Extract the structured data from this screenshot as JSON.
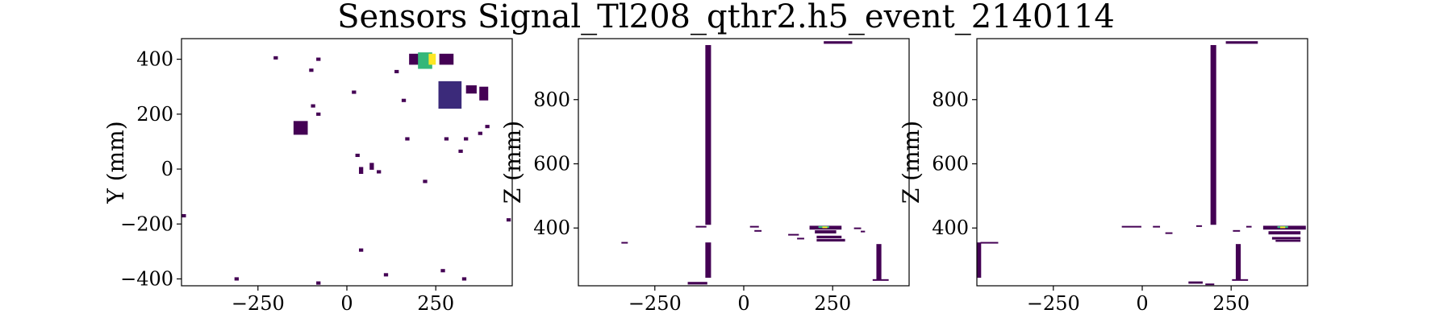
{
  "figure": {
    "title": "Sensors Signal_Tl208_qthr2.h5_event_2140114"
  },
  "colors": {
    "low": "#440154",
    "mid": "#31688e",
    "midhigh": "#35b779",
    "high": "#fde725"
  },
  "chart_data": [
    {
      "type": "heatmap",
      "xlabel": "",
      "ylabel": "Y (mm)",
      "xlim": [
        -465,
        465
      ],
      "ylim": [
        -425,
        475
      ],
      "xticks": [
        -250,
        0,
        250
      ],
      "yticks": [
        -400,
        -200,
        0,
        200,
        400
      ],
      "xtick_labels": [
        "−250",
        "0",
        "250"
      ],
      "ytick_labels": [
        "−400",
        "−200",
        "0",
        "200",
        "400"
      ],
      "cells": [
        {
          "x": -460,
          "y": -170,
          "w": 15,
          "h": 12,
          "v": 0.02
        },
        {
          "x": -200,
          "y": 405,
          "w": 12,
          "h": 12,
          "v": 0.02
        },
        {
          "x": -100,
          "y": 360,
          "w": 12,
          "h": 12,
          "v": 0.02
        },
        {
          "x": -80,
          "y": 400,
          "w": 12,
          "h": 12,
          "v": 0.02
        },
        {
          "x": -95,
          "y": 230,
          "w": 12,
          "h": 12,
          "v": 0.02
        },
        {
          "x": -80,
          "y": 200,
          "w": 12,
          "h": 12,
          "v": 0.02
        },
        {
          "x": -130,
          "y": 150,
          "w": 40,
          "h": 50,
          "v": 0.1
        },
        {
          "x": 20,
          "y": 280,
          "w": 12,
          "h": 12,
          "v": 0.02
        },
        {
          "x": 30,
          "y": 50,
          "w": 12,
          "h": 12,
          "v": 0.02
        },
        {
          "x": 40,
          "y": -5,
          "w": 12,
          "h": 25,
          "v": 0.02
        },
        {
          "x": 70,
          "y": 10,
          "w": 12,
          "h": 25,
          "v": 0.02
        },
        {
          "x": 90,
          "y": -10,
          "w": 12,
          "h": 12,
          "v": 0.02
        },
        {
          "x": 190,
          "y": 400,
          "w": 30,
          "h": 40,
          "v": 0.05
        },
        {
          "x": 140,
          "y": 355,
          "w": 12,
          "h": 12,
          "v": 0.02
        },
        {
          "x": 160,
          "y": 250,
          "w": 12,
          "h": 12,
          "v": 0.02
        },
        {
          "x": 220,
          "y": 395,
          "w": 40,
          "h": 60,
          "v": 0.8
        },
        {
          "x": 240,
          "y": 400,
          "w": 20,
          "h": 40,
          "v": 1.0
        },
        {
          "x": 280,
          "y": 400,
          "w": 40,
          "h": 40,
          "v": 0.05
        },
        {
          "x": 290,
          "y": 270,
          "w": 65,
          "h": 100,
          "v": 0.18
        },
        {
          "x": 350,
          "y": 290,
          "w": 30,
          "h": 30,
          "v": 0.03
        },
        {
          "x": 385,
          "y": 275,
          "w": 25,
          "h": 50,
          "v": 0.03
        },
        {
          "x": 170,
          "y": 110,
          "w": 12,
          "h": 12,
          "v": 0.02
        },
        {
          "x": 280,
          "y": 110,
          "w": 12,
          "h": 12,
          "v": 0.02
        },
        {
          "x": 335,
          "y": 110,
          "w": 12,
          "h": 12,
          "v": 0.02
        },
        {
          "x": 375,
          "y": 130,
          "w": 12,
          "h": 12,
          "v": 0.02
        },
        {
          "x": 395,
          "y": 155,
          "w": 12,
          "h": 12,
          "v": 0.02
        },
        {
          "x": 320,
          "y": 65,
          "w": 12,
          "h": 12,
          "v": 0.02
        },
        {
          "x": 220,
          "y": -45,
          "w": 12,
          "h": 12,
          "v": 0.02
        },
        {
          "x": 455,
          "y": -185,
          "w": 12,
          "h": 12,
          "v": 0.02
        },
        {
          "x": 40,
          "y": -295,
          "w": 12,
          "h": 12,
          "v": 0.02
        },
        {
          "x": 110,
          "y": -385,
          "w": 12,
          "h": 12,
          "v": 0.02
        },
        {
          "x": 270,
          "y": -370,
          "w": 12,
          "h": 12,
          "v": 0.02
        },
        {
          "x": 330,
          "y": -400,
          "w": 12,
          "h": 12,
          "v": 0.02
        },
        {
          "x": -310,
          "y": -400,
          "w": 12,
          "h": 12,
          "v": 0.02
        },
        {
          "x": -80,
          "y": -415,
          "w": 12,
          "h": 12,
          "v": 0.02
        }
      ]
    },
    {
      "type": "heatmap",
      "xlabel": "",
      "ylabel": "Z (mm)",
      "xlim": [
        -465,
        465
      ],
      "ylim": [
        220,
        990
      ],
      "xticks": [
        -250,
        0,
        250
      ],
      "yticks": [
        400,
        600,
        800
      ],
      "xtick_labels": [
        "−250",
        "0",
        "250"
      ],
      "ytick_labels": [
        "400",
        "600",
        "800"
      ],
      "cells": [
        {
          "x": -100,
          "y": 690,
          "w": 16,
          "h": 560,
          "v": 0.05
        },
        {
          "x": -100,
          "y": 300,
          "w": 16,
          "h": 110,
          "v": 0.05
        },
        {
          "x": -120,
          "y": 405,
          "w": 30,
          "h": 3,
          "v": 0.02
        },
        {
          "x": -130,
          "y": 228,
          "w": 55,
          "h": 8,
          "v": 0.05
        },
        {
          "x": 265,
          "y": 978,
          "w": 80,
          "h": 8,
          "v": 0.05
        },
        {
          "x": 230,
          "y": 401,
          "w": 90,
          "h": 12,
          "v": 0.1
        },
        {
          "x": 225,
          "y": 403,
          "w": 30,
          "h": 6,
          "v": 0.8
        },
        {
          "x": 228,
          "y": 402,
          "w": 14,
          "h": 5,
          "v": 1.0
        },
        {
          "x": 230,
          "y": 388,
          "w": 60,
          "h": 10,
          "v": 0.05
        },
        {
          "x": 240,
          "y": 372,
          "w": 70,
          "h": 8,
          "v": 0.05
        },
        {
          "x": 245,
          "y": 362,
          "w": 80,
          "h": 8,
          "v": 0.05
        },
        {
          "x": 140,
          "y": 380,
          "w": 30,
          "h": 3,
          "v": 0.02
        },
        {
          "x": 160,
          "y": 368,
          "w": 20,
          "h": 3,
          "v": 0.02
        },
        {
          "x": 320,
          "y": 400,
          "w": 20,
          "h": 3,
          "v": 0.02
        },
        {
          "x": 335,
          "y": 390,
          "w": 12,
          "h": 3,
          "v": 0.02
        },
        {
          "x": 30,
          "y": 405,
          "w": 25,
          "h": 3,
          "v": 0.02
        },
        {
          "x": 40,
          "y": 392,
          "w": 20,
          "h": 3,
          "v": 0.02
        },
        {
          "x": -335,
          "y": 355,
          "w": 18,
          "h": 3,
          "v": 0.02
        },
        {
          "x": 380,
          "y": 295,
          "w": 14,
          "h": 110,
          "v": 0.05
        },
        {
          "x": 385,
          "y": 238,
          "w": 45,
          "h": 5,
          "v": 0.05
        }
      ]
    },
    {
      "type": "heatmap",
      "xlabel": "",
      "ylabel": "Z (mm)",
      "xlim": [
        -465,
        465
      ],
      "ylim": [
        220,
        990
      ],
      "xticks": [
        -250,
        0,
        250
      ],
      "yticks": [
        400,
        600,
        800
      ],
      "xtick_labels": [
        "−250",
        "0",
        "250"
      ],
      "ytick_labels": [
        "400",
        "600",
        "800"
      ],
      "cells": [
        {
          "x": 200,
          "y": 690,
          "w": 16,
          "h": 560,
          "v": 0.05
        },
        {
          "x": 280,
          "y": 978,
          "w": 90,
          "h": 8,
          "v": 0.05
        },
        {
          "x": 400,
          "y": 401,
          "w": 120,
          "h": 12,
          "v": 0.1
        },
        {
          "x": 395,
          "y": 403,
          "w": 30,
          "h": 6,
          "v": 0.8
        },
        {
          "x": 395,
          "y": 402,
          "w": 14,
          "h": 5,
          "v": 1.0
        },
        {
          "x": 400,
          "y": 385,
          "w": 90,
          "h": 10,
          "v": 0.05
        },
        {
          "x": 405,
          "y": 368,
          "w": 80,
          "h": 8,
          "v": 0.05
        },
        {
          "x": 410,
          "y": 360,
          "w": 70,
          "h": 6,
          "v": 0.05
        },
        {
          "x": 270,
          "y": 295,
          "w": 14,
          "h": 110,
          "v": 0.05
        },
        {
          "x": 275,
          "y": 238,
          "w": 45,
          "h": 5,
          "v": 0.05
        },
        {
          "x": 150,
          "y": 230,
          "w": 40,
          "h": 7,
          "v": 0.05
        },
        {
          "x": 190,
          "y": 225,
          "w": 25,
          "h": 4,
          "v": 0.02
        },
        {
          "x": -460,
          "y": 300,
          "w": 14,
          "h": 110,
          "v": 0.05
        },
        {
          "x": -430,
          "y": 355,
          "w": 50,
          "h": 3,
          "v": 0.02
        },
        {
          "x": -30,
          "y": 405,
          "w": 55,
          "h": 3,
          "v": 0.02
        },
        {
          "x": 40,
          "y": 405,
          "w": 20,
          "h": 3,
          "v": 0.02
        },
        {
          "x": 75,
          "y": 385,
          "w": 20,
          "h": 3,
          "v": 0.02
        },
        {
          "x": 160,
          "y": 407,
          "w": 16,
          "h": 3,
          "v": 0.02
        },
        {
          "x": 265,
          "y": 392,
          "w": 20,
          "h": 3,
          "v": 0.02
        },
        {
          "x": 300,
          "y": 405,
          "w": 15,
          "h": 3,
          "v": 0.02
        }
      ]
    }
  ]
}
